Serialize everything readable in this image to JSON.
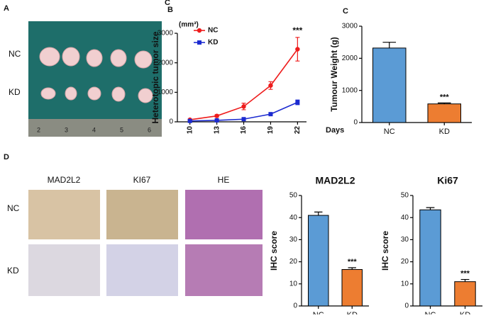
{
  "panel_labels": [
    "A",
    "C",
    "B",
    "C",
    "D"
  ],
  "photo_a": {
    "rows": [
      "NC",
      "KD"
    ],
    "ruler_labels": [
      "2",
      "3",
      "4",
      "5",
      "6"
    ]
  },
  "photo_d": {
    "columns": [
      "MAD2L2",
      "KI67",
      "HE"
    ],
    "rows": [
      "NC",
      "KD"
    ]
  },
  "chart_data": [
    {
      "type": "line",
      "y_unit": "(mm³)",
      "y_label": "Heterotopic tumor size",
      "x_label": "Days",
      "x": [
        10,
        13,
        16,
        19,
        22
      ],
      "xlim": [
        8.6,
        23
      ],
      "xticks": [
        10,
        13,
        16,
        19,
        22
      ],
      "ylim": [
        0,
        3000
      ],
      "yticks": [
        0,
        1000,
        2000,
        3000
      ],
      "legend": "upper left",
      "significance": "***",
      "series": [
        {
          "name": "NC",
          "color": "#ee1c1c",
          "marker": "circle",
          "values": [
            70,
            200,
            520,
            1230,
            2460
          ],
          "errors": [
            20,
            40,
            110,
            130,
            400
          ]
        },
        {
          "name": "KD",
          "color": "#1c2bd0",
          "marker": "square",
          "values": [
            30,
            50,
            90,
            260,
            660
          ],
          "errors": [
            10,
            10,
            20,
            30,
            80
          ]
        }
      ]
    },
    {
      "type": "bar",
      "y_label": "Tumour Weight (g)",
      "categories": [
        "NC",
        "KD"
      ],
      "values": [
        2320,
        580
      ],
      "errors": [
        180,
        30
      ],
      "colors": [
        "#5b9bd5",
        "#ed7d31"
      ],
      "ylim": [
        0,
        3000
      ],
      "yticks": [
        0,
        1000,
        2000,
        3000
      ],
      "significance": "***"
    },
    {
      "type": "bar",
      "title": "MAD2L2",
      "y_label": "IHC score",
      "categories": [
        "NC",
        "KD"
      ],
      "values": [
        41,
        16.5
      ],
      "errors": [
        1.5,
        0.8
      ],
      "colors": [
        "#5b9bd5",
        "#ed7d31"
      ],
      "ylim": [
        0,
        50
      ],
      "yticks": [
        0,
        10,
        20,
        30,
        40,
        50
      ],
      "significance": "***"
    },
    {
      "type": "bar",
      "title": "Ki67",
      "y_label": "IHC score",
      "categories": [
        "NC",
        "KD"
      ],
      "values": [
        43.5,
        11
      ],
      "errors": [
        1,
        1
      ],
      "colors": [
        "#5b9bd5",
        "#ed7d31"
      ],
      "ylim": [
        0,
        50
      ],
      "yticks": [
        0,
        10,
        20,
        30,
        40,
        50
      ],
      "significance": "***"
    }
  ]
}
